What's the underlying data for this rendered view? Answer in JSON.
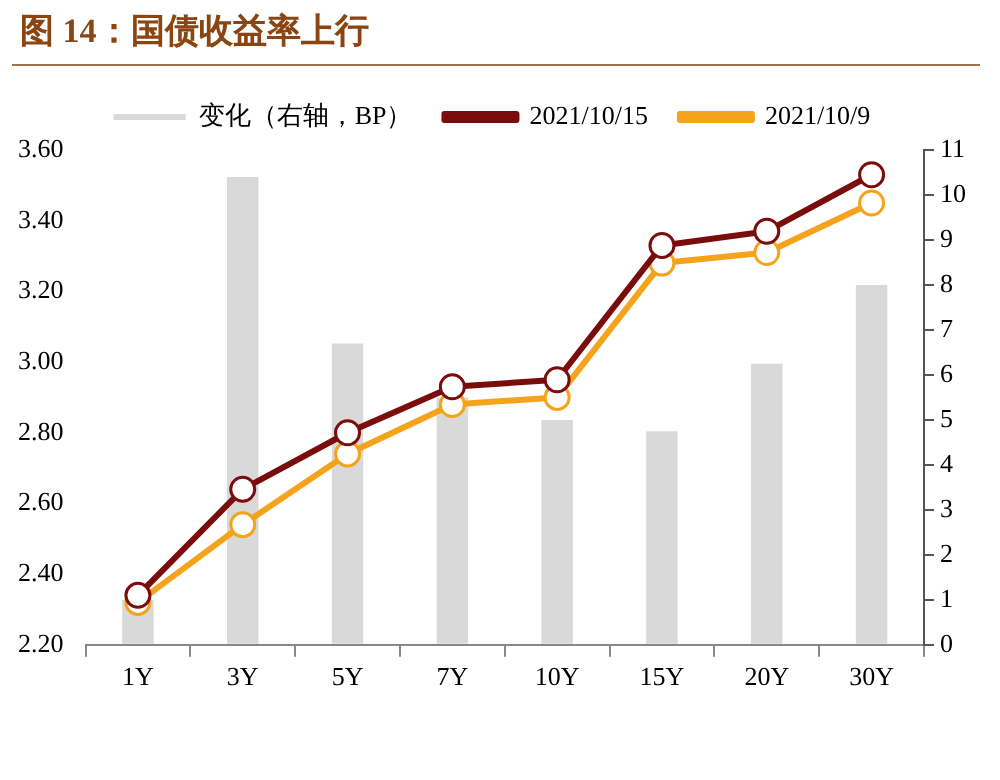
{
  "chart_data": {
    "type": "line",
    "title": "图 14：国债收益率上行",
    "categories": [
      "1Y",
      "3Y",
      "5Y",
      "7Y",
      "10Y",
      "15Y",
      "20Y",
      "30Y"
    ],
    "series": [
      {
        "name": "变化（右轴，BP）",
        "type": "bar",
        "axis": "y2",
        "color": "#d9d9d9",
        "values": [
          1.0,
          10.4,
          6.7,
          5.5,
          5.0,
          4.75,
          6.25,
          8.0
        ]
      },
      {
        "name": "2021/10/15",
        "color": "#7b0c0c",
        "values": [
          2.34,
          2.64,
          2.8,
          2.93,
          2.95,
          3.33,
          3.37,
          3.53
        ]
      },
      {
        "name": "2021/10/9",
        "color": "#f5a31a",
        "values": [
          2.32,
          2.54,
          2.74,
          2.88,
          2.9,
          3.28,
          3.31,
          3.45
        ]
      }
    ],
    "ylim": [
      2.2,
      3.6
    ],
    "yticks": [
      {
        "value": 2.2,
        "label": "2.20"
      },
      {
        "value": 2.4,
        "label": "2.40"
      },
      {
        "value": 2.6,
        "label": "2.60"
      },
      {
        "value": 2.8,
        "label": "2.80"
      },
      {
        "value": 3.0,
        "label": "3.00"
      },
      {
        "value": 3.2,
        "label": "3.20"
      },
      {
        "value": 3.4,
        "label": "3.40"
      },
      {
        "value": 3.6,
        "label": "3.60"
      }
    ],
    "y2lim": [
      0,
      11
    ],
    "y2ticks": [
      0,
      1,
      2,
      3,
      4,
      5,
      6,
      7,
      8,
      9,
      10,
      11
    ],
    "grid": false,
    "legend": "top",
    "marker": "circle",
    "line_style": "solid"
  }
}
